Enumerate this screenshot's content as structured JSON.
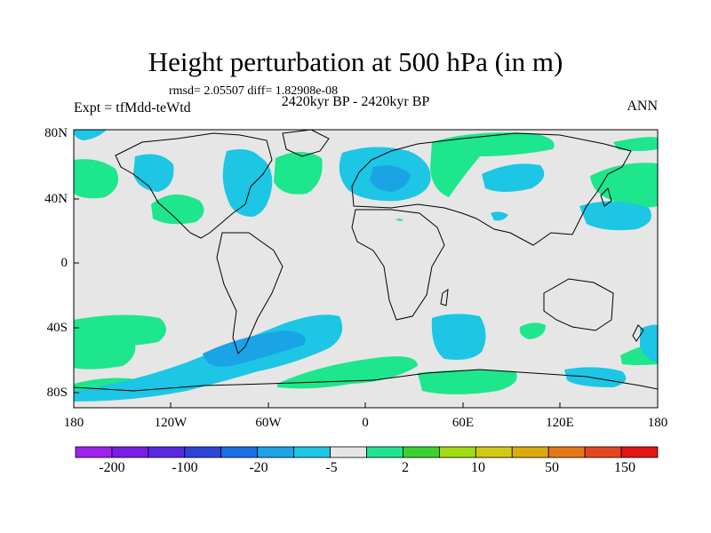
{
  "title": "Height perturbation at 500 hPa (in m)",
  "stats": "rmsd= 2.05507  diff= 1.82908e-08",
  "subtitle": "2420kyr BP - 2420kyr BP",
  "experiment": "Expt = tfMdd-teWtd",
  "season": "ANN",
  "lat_labels": [
    "80N",
    "40N",
    "0",
    "40S",
    "80S"
  ],
  "lon_labels": [
    "180",
    "120W",
    "60W",
    "0",
    "60E",
    "120E",
    "180"
  ],
  "colorbar": {
    "colors": [
      "#a020f0",
      "#7a1de8",
      "#5a28e0",
      "#2c45d8",
      "#1a70e6",
      "#1aa4e6",
      "#1cc6e4",
      "#e6e6e6",
      "#1ee68c",
      "#3cd22d",
      "#a0dc14",
      "#d2c814",
      "#dcaa0a",
      "#e67814",
      "#e6461e",
      "#e61414"
    ],
    "labels": [
      "-200",
      "-100",
      "-20",
      "-5",
      "2",
      "10",
      "50",
      "150"
    ]
  },
  "colors": {
    "background_field": "#e6e6e6",
    "negative_anomaly": "#1cc6e4",
    "deeper_negative": "#1aa4e6",
    "positive_anomaly": "#1ee68c"
  }
}
